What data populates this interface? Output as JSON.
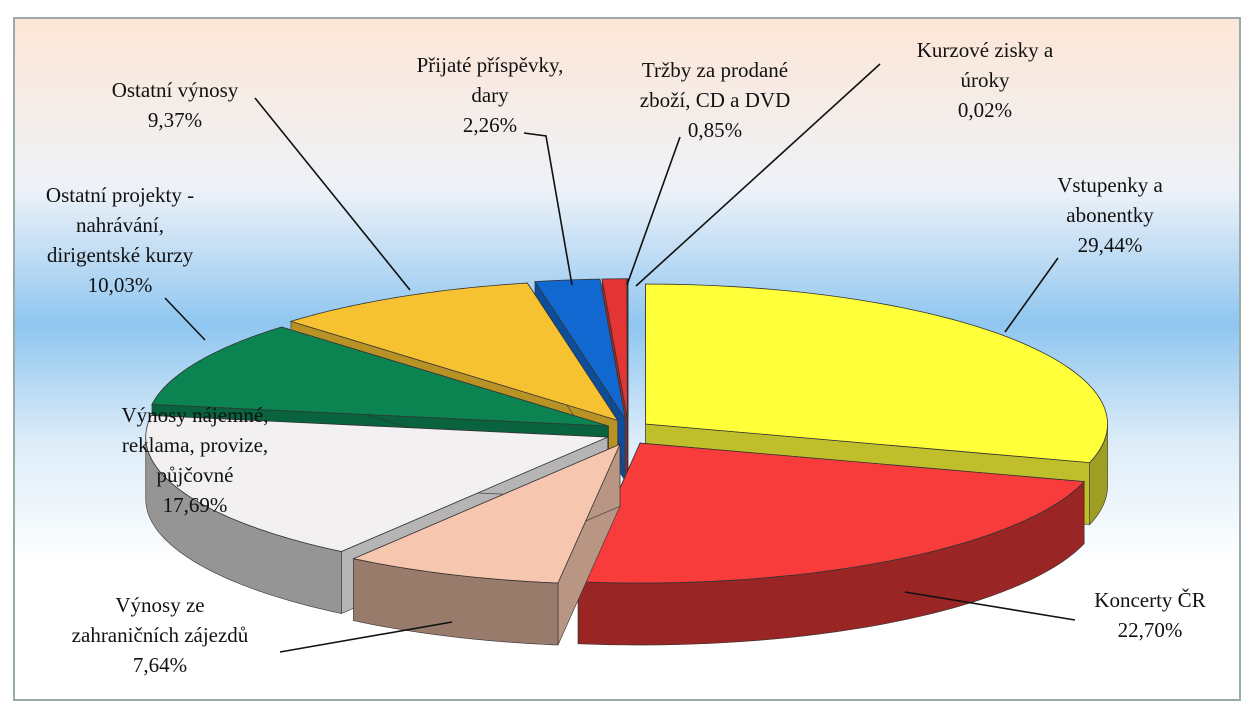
{
  "chart_data": {
    "type": "pie",
    "categories": [
      "Vstupenky a\nabonentky",
      "Koncerty ČR",
      "Výnosy ze\nzahraničních zájezdů",
      "Výnosy nájemné,\nreklama, provize,\npůjčovné",
      "Ostatní projekty -\nnahrávání,\ndirigentské kurzy",
      "Ostatní výnosy",
      "Přijaté příspěvky,\ndary",
      "Tržby za prodané\nzboží, CD a DVD",
      "Kurzové zisky a\núroky"
    ],
    "values": [
      29.44,
      22.7,
      7.64,
      17.69,
      10.03,
      9.37,
      2.26,
      0.85,
      0.02
    ],
    "value_labels": [
      "29,44%",
      "22,70%",
      "7,64%",
      "17,69%",
      "10,03%",
      "9,37%",
      "2,26%",
      "0,85%",
      "0,02%"
    ],
    "colors": [
      "#ffff3a",
      "#f83c3c",
      "#f6c6ae",
      "#f2f0f0",
      "#0b8452",
      "#f6c232",
      "#1168d0",
      "#e43434",
      "#2050c0"
    ]
  }
}
